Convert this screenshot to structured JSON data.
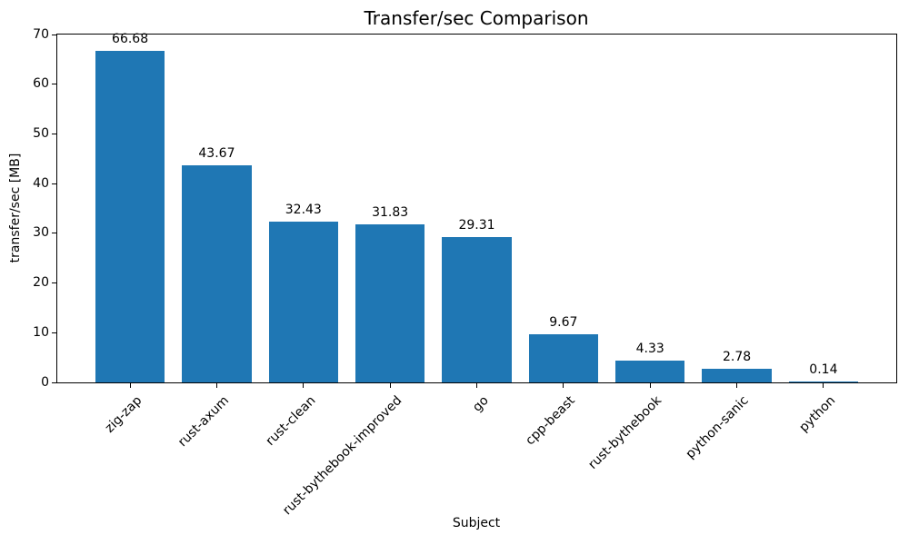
{
  "chart_data": {
    "type": "bar",
    "title": "Transfer/sec Comparison",
    "xlabel": "Subject",
    "ylabel": "transfer/sec [MB]",
    "categories": [
      "zig-zap",
      "rust-axum",
      "rust-clean",
      "rust-bythebook-improved",
      "go",
      "cpp-beast",
      "rust-bythebook",
      "python-sanic",
      "python"
    ],
    "values": [
      66.68,
      43.67,
      32.43,
      31.83,
      29.31,
      9.67,
      4.33,
      2.78,
      0.14
    ],
    "bar_labels": [
      "66.68",
      "43.67",
      "32.43",
      "31.83",
      "29.31",
      "9.67",
      "4.33",
      "2.78",
      "0.14"
    ],
    "ylim": [
      0,
      70
    ],
    "yticks": [
      0,
      10,
      20,
      30,
      40,
      50,
      60,
      70
    ],
    "bar_color": "#1f77b4",
    "axis_color": "#000000",
    "grid": false,
    "legend": false,
    "x_tick_rotation_deg": 45
  }
}
